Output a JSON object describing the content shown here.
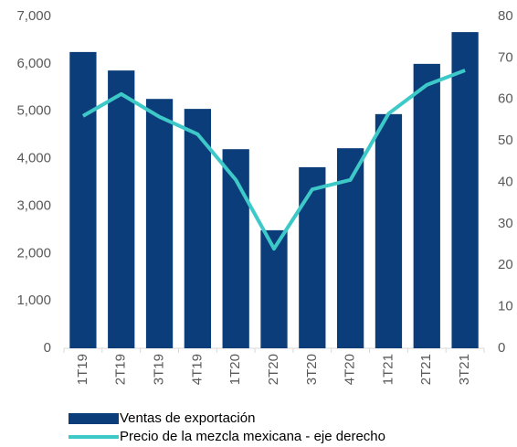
{
  "chart_data": {
    "type": "bar_line",
    "categories": [
      "1T19",
      "2T19",
      "3T19",
      "4T19",
      "1T20",
      "2T20",
      "3T20",
      "4T20",
      "1T21",
      "2T21",
      "3T21"
    ],
    "series": [
      {
        "name": "Ventas de exportación",
        "type": "bar",
        "color": "#0b3d7a",
        "axis": "y",
        "values": [
          6250,
          5860,
          5260,
          5050,
          4200,
          2490,
          3820,
          4220,
          4940,
          6000,
          6670
        ]
      },
      {
        "name": "Precio de la mezcla mexicana - eje derecho",
        "type": "line",
        "color": "#3ec9c9",
        "axis": "y2",
        "values": [
          56,
          61.3,
          55.8,
          51.6,
          40.6,
          24,
          38.3,
          40.6,
          56.6,
          63.5,
          67
        ]
      }
    ],
    "ylim": [
      0,
      7000
    ],
    "yticks": [
      0,
      {
        "value": 1000,
        "label": "1,000"
      },
      {
        "value": 2000,
        "label": "2,000"
      },
      {
        "value": 3000,
        "label": "3,000"
      },
      {
        "value": 4000,
        "label": "4,000"
      },
      {
        "value": 5000,
        "label": "5,000"
      },
      {
        "value": 6000,
        "label": "6,000"
      },
      {
        "value": 7000,
        "label": "7,000"
      }
    ],
    "y2lim": [
      0,
      80
    ],
    "y2ticks": [
      0,
      10,
      20,
      30,
      40,
      50,
      60,
      70,
      80
    ],
    "grid": false,
    "legend": "bottom"
  }
}
